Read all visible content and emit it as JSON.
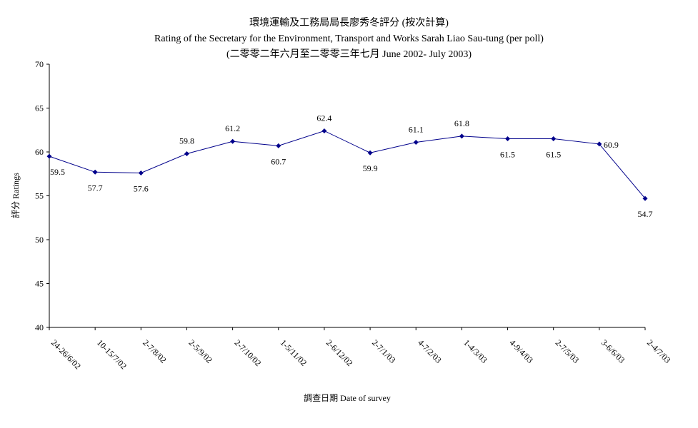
{
  "chart_data": {
    "type": "line",
    "title": "環境運輸及工務局局長廖秀冬評分 (按次計算)",
    "subtitle": "Rating of the Secretary for the Environment, Transport and Works Sarah Liao Sau-tung  (per poll)",
    "subtitle2": "(二零零二年六月至二零零三年七月 June 2002- July 2003)",
    "xlabel": "調查日期 Date of survey",
    "ylabel": "評分 Ratings",
    "ylim": [
      40,
      70
    ],
    "yticks": [
      "40",
      "45",
      "50",
      "55",
      "60",
      "65",
      "70"
    ],
    "grid": false,
    "categories": [
      "24-26/6/02",
      "10-15/7/02",
      "2-7/8/02",
      "2-5/9/02",
      "2-7/10/02",
      "1-5/11/02",
      "2-6/12/02",
      "2-7/1/03",
      "4-7/2/03",
      "1-4/3/03",
      "4-9/4/03",
      "2-7/5/03",
      "3-6/6/03",
      "2-4/7/03"
    ],
    "values": [
      59.5,
      57.7,
      57.6,
      59.8,
      61.2,
      60.7,
      62.4,
      59.9,
      61.1,
      61.8,
      61.5,
      61.5,
      60.9,
      54.7
    ],
    "labels": [
      "59.5",
      "57.7",
      "57.6",
      "59.8",
      "61.2",
      "60.7",
      "62.4",
      "59.9",
      "61.1",
      "61.8",
      "61.5",
      "61.5",
      "60.9",
      "54.7"
    ],
    "label_positions": [
      "below",
      "below",
      "below",
      "above",
      "above",
      "below",
      "above",
      "below",
      "above",
      "above",
      "below",
      "below",
      "right",
      "below"
    ],
    "series_color": "#00008B"
  }
}
